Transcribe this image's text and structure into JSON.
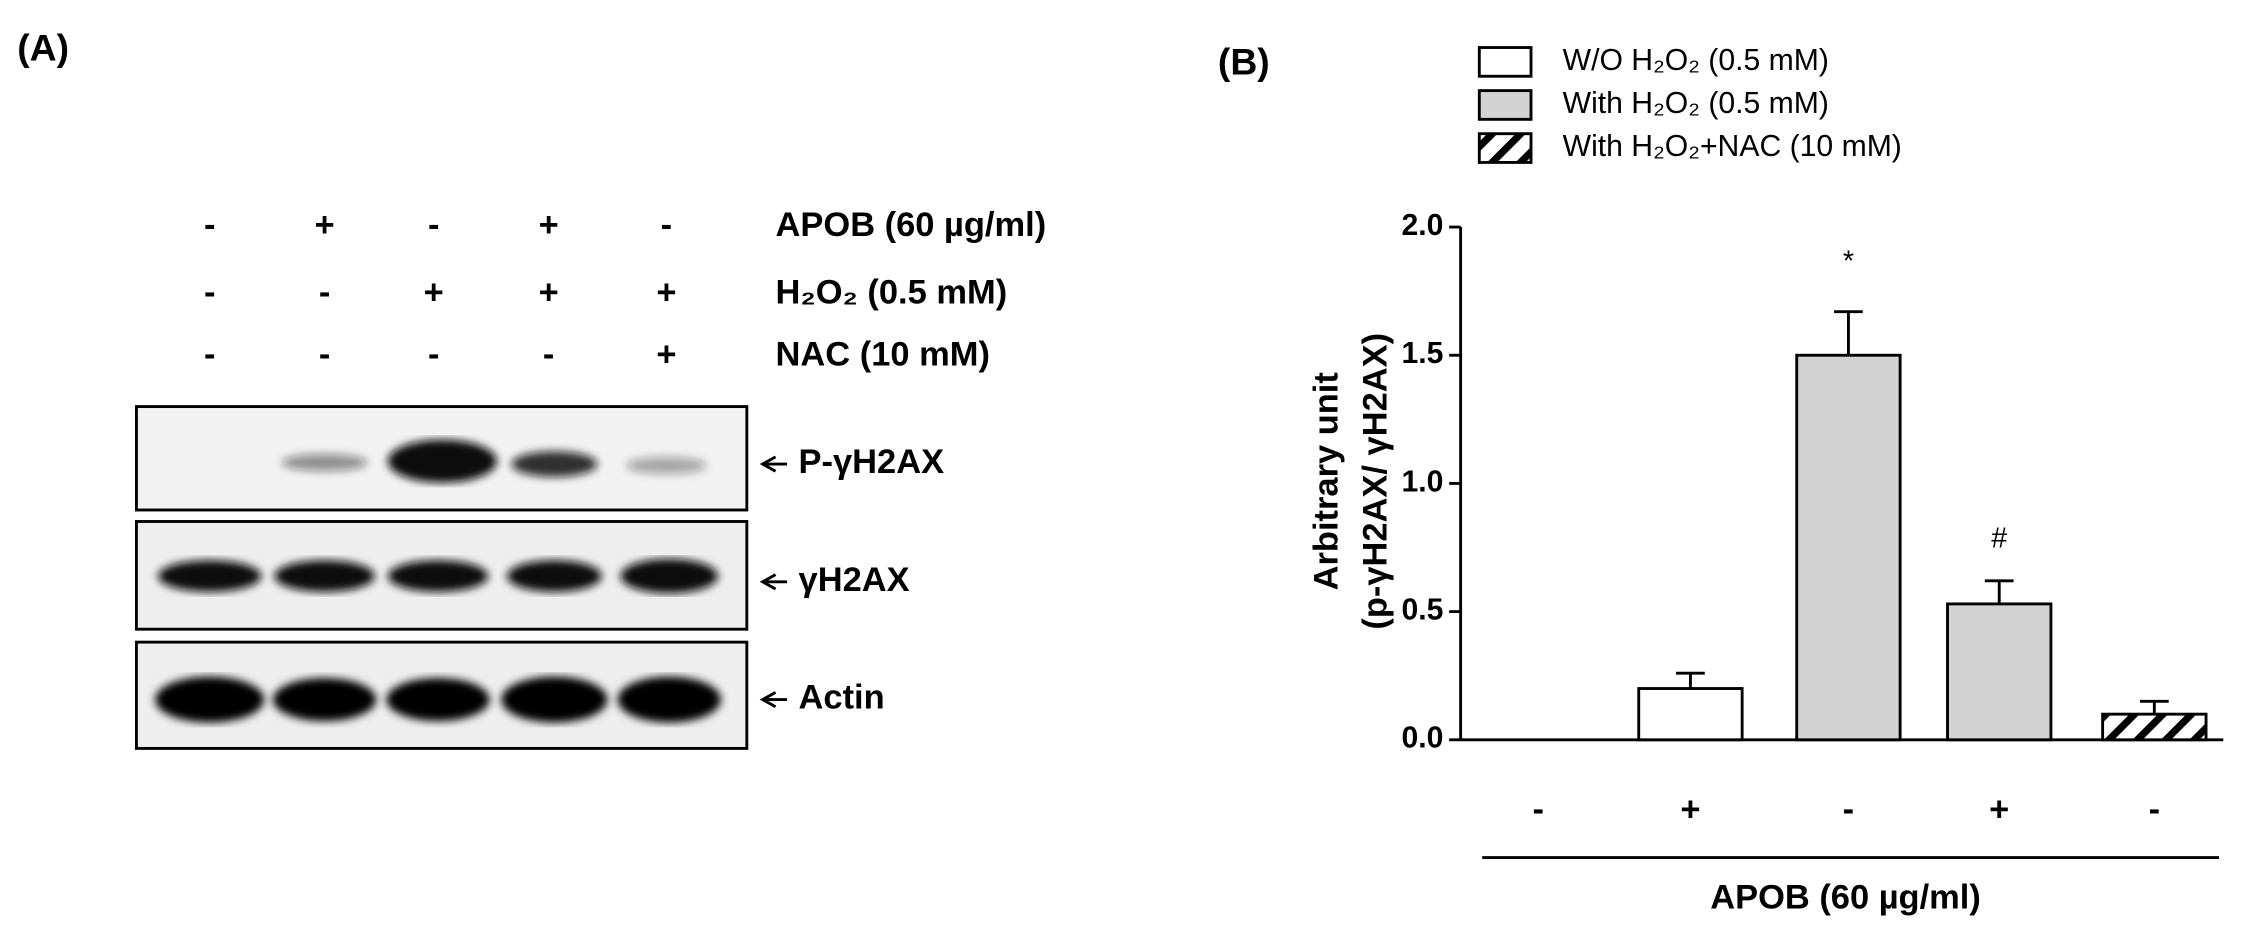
{
  "panel_a": {
    "label": "(A)",
    "treatments": [
      {
        "name": "APOB (60 µg/ml)",
        "signs": [
          "-",
          "+",
          "-",
          "+",
          "-"
        ]
      },
      {
        "name": "H₂O₂ (0.5 mM)",
        "signs": [
          "-",
          "-",
          "+",
          "+",
          "+"
        ]
      },
      {
        "name": "NAC (10 mM)",
        "signs": [
          "-",
          "-",
          "-",
          "-",
          "+"
        ]
      }
    ],
    "blots": [
      "P-γH2AX",
      "γH2AX",
      "Actin"
    ]
  },
  "chart_data": {
    "type": "bar",
    "panel_label": "(B)",
    "ylabel": [
      "Arbitrary unit",
      "(p-γH2AX/ γH2AX)"
    ],
    "xlabel": "APOB (60 µg/ml)",
    "categories": [
      "-",
      "+",
      "-",
      "+",
      "-"
    ],
    "series": [
      {
        "name": "W/O H₂O₂ (0.5 mM)",
        "color": "#ffffff",
        "values": [
          0,
          0.2,
          null,
          null,
          null
        ],
        "errors": [
          0,
          0.06,
          null,
          null,
          null
        ]
      },
      {
        "name": "With H₂O₂ (0.5 mM)",
        "color": "#d3d3d3",
        "values": [
          null,
          null,
          1.5,
          0.53,
          null
        ],
        "errors": [
          null,
          null,
          0.17,
          0.09,
          null
        ]
      },
      {
        "name": "With H₂O₂+NAC (10 mM)",
        "color": "#ffffff",
        "pattern": "hatch",
        "values": [
          null,
          null,
          null,
          null,
          0.1
        ],
        "errors": [
          null,
          null,
          null,
          null,
          0.05
        ]
      }
    ],
    "annotations": [
      "*",
      "#"
    ],
    "ylim": [
      0,
      2
    ],
    "yticks": [
      {
        "value": 0,
        "label": "0.0"
      },
      {
        "value": 0.5,
        "label": "0.5"
      },
      {
        "value": 1,
        "label": "1.0"
      },
      {
        "value": 1.5,
        "label": "1.5"
      },
      {
        "value": 2,
        "label": "2.0"
      }
    ]
  }
}
